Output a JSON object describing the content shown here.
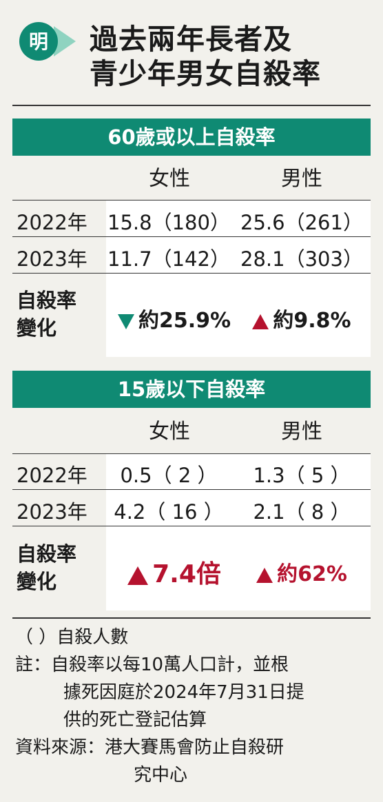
{
  "header": {
    "logo_text": "明",
    "title_line1": "過去兩年長者及",
    "title_line2": "青少年男女自殺率"
  },
  "colors": {
    "accent": "#0f8a73",
    "up": "#b5122e",
    "background": "#f2f1ec"
  },
  "section1": {
    "title": "60歲或以上自殺率",
    "col_female": "女性",
    "col_male": "男性",
    "rows": [
      {
        "year": "2022年",
        "female": "15.8（180）",
        "male": "25.6（261）"
      },
      {
        "year": "2023年",
        "female": "11.7（142）",
        "male": "28.1（303）"
      }
    ],
    "change_label_1": "自殺率",
    "change_label_2": "變化",
    "change_female": "約25.9%",
    "change_female_dir": "down",
    "change_male": "約9.8%",
    "change_male_dir": "up"
  },
  "section2": {
    "title": "15歲以下自殺率",
    "col_female": "女性",
    "col_male": "男性",
    "rows": [
      {
        "year": "2022年",
        "female": "0.5（ 2 ）",
        "male": "1.3（ 5 ）"
      },
      {
        "year": "2023年",
        "female": "4.2（ 16 ）",
        "male": "2.1（ 8 ）"
      }
    ],
    "change_label_1": "自殺率",
    "change_label_2": "變化",
    "change_female": "7.4倍",
    "change_female_dir": "up",
    "change_male": "約62%",
    "change_male_dir": "up"
  },
  "notes": {
    "legend": "（ ）自殺人數",
    "note_1": "註：自殺率以每10萬人口計，並根",
    "note_2": "據死因庭於2024年7月31日提",
    "note_3": "供的死亡登記估算",
    "source_1": "資料來源：港大賽馬會防止自殺研",
    "source_2": "究中心"
  }
}
